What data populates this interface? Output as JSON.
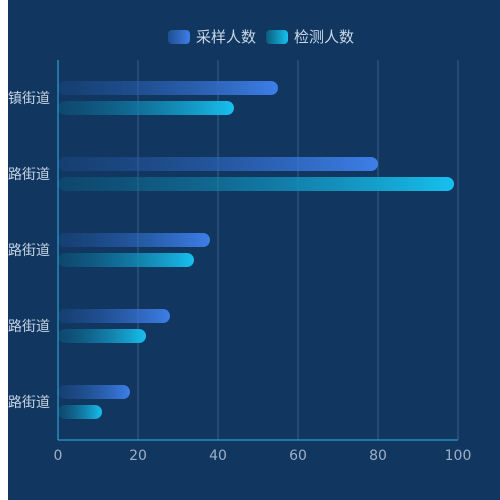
{
  "chart_data": {
    "type": "bar",
    "orientation": "horizontal",
    "categories": [
      "镇街道",
      "路街道",
      "路街道",
      "路街道",
      "路街道"
    ],
    "series": [
      {
        "name": "采样人数",
        "values": [
          55,
          80,
          38,
          28,
          18
        ]
      },
      {
        "name": "检测人数",
        "values": [
          44,
          99,
          34,
          22,
          11
        ]
      }
    ],
    "x_ticks": [
      "0",
      "20",
      "40",
      "60",
      "80",
      "100"
    ],
    "xlim": [
      0,
      100
    ],
    "grid": "vertical",
    "legend_position": "top",
    "colors": {
      "background": "#11365f",
      "axis": "#2fb7e6",
      "grid": "#3f5f86",
      "series_1_start": "#1f4f92",
      "series_1_end": "#3d7ee8",
      "series_2_start": "#0c5a7e",
      "series_2_end": "#17c0ee"
    }
  }
}
